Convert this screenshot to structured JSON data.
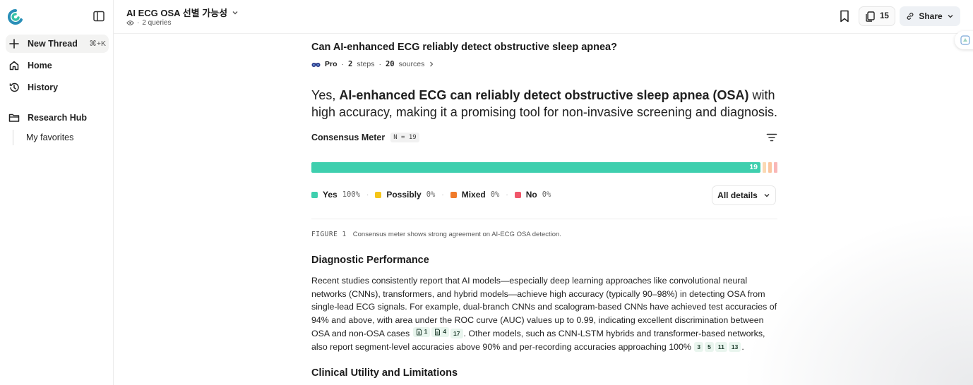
{
  "sidebar": {
    "new_thread": "New Thread",
    "new_thread_shortcut": "⌘+K",
    "home": "Home",
    "history": "History",
    "research_hub": "Research Hub",
    "favorites": "My favorites"
  },
  "header": {
    "title": "AI ECG OSA 선별 가능성",
    "queries": "2 queries",
    "sources_count": "15",
    "share_label": "Share"
  },
  "thread": {
    "question": "Can AI-enhanced ECG reliably detect obstructive sleep apnea?",
    "mode": "Pro",
    "steps_count": "2",
    "steps_label": "steps",
    "sources_count": "20",
    "sources_label": "sources",
    "answer_prefix": "Yes, ",
    "answer_bold": "AI-enhanced ECG can reliably detect obstructive sleep apnea (OSA)",
    "answer_suffix": " with high accuracy, making it a promising tool for non-invasive screening and diagnosis."
  },
  "consensus": {
    "title": "Consensus Meter",
    "n_badge": "N = 19",
    "yes_count": "19",
    "yes_fraction": 1.0,
    "legend": [
      {
        "label": "Yes",
        "pct": "100%",
        "color": "#3ecfae"
      },
      {
        "label": "Possibly",
        "pct": "0%",
        "color": "#f5c518"
      },
      {
        "label": "Mixed",
        "pct": "0%",
        "color": "#f07a2a"
      },
      {
        "label": "No",
        "pct": "0%",
        "color": "#f0566a"
      }
    ],
    "stub_colors": [
      "#fbd9b4",
      "#fbc6a0",
      "#f9b7b7"
    ],
    "details_label": "All details"
  },
  "figure": {
    "label": "FIGURE 1",
    "caption": "Consensus meter shows strong agreement on AI-ECG OSA detection."
  },
  "sections": {
    "diagnostic_title": "Diagnostic Performance",
    "diagnostic_text_1": "Recent studies consistently report that AI models—especially deep learning approaches like convolutional neural networks (CNNs), transformers, and hybrid models—achieve high accuracy (typically 90–98%) in detecting OSA from single-lead ECG signals. For example, dual-branch CNNs and scalogram-based CNNs have achieved test accuracies of 94% and above, with area under the ROC curve (AUC) values up to 0.99, indicating excellent discrimination between OSA and non-OSA cases ",
    "diagnostic_text_2": ". Other models, such as CNN-LSTM hybrids and transformer-based networks, also report segment-level accuracies above 90% and per-recording accuracies approaching 100% ",
    "diagnostic_text_3": ".",
    "cites_a": [
      "1",
      "4",
      "17"
    ],
    "cites_b": [
      "3",
      "5",
      "11",
      "13"
    ],
    "clinical_title": "Clinical Utility and Limitations"
  }
}
